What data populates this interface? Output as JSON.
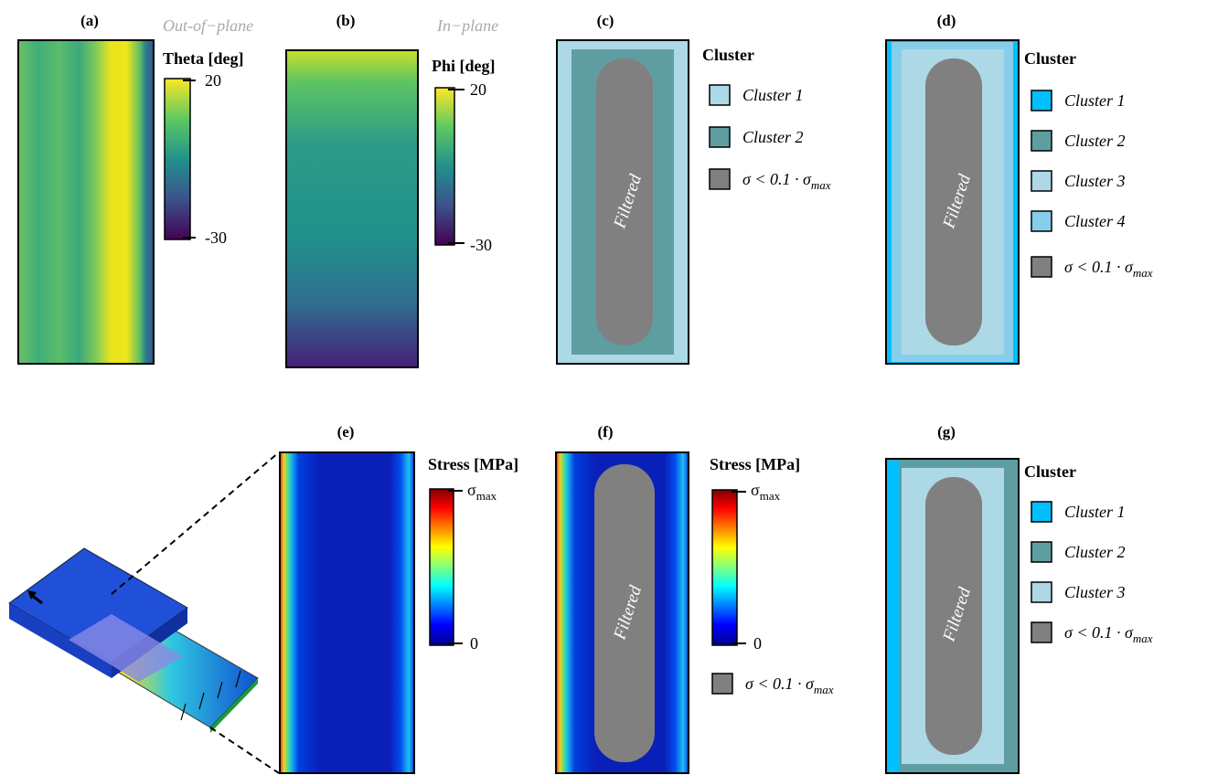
{
  "panels": [
    {
      "label": "(a)",
      "note": "Out-of−plane",
      "colorbar": {
        "title": "Theta [deg]",
        "ticks": [
          20,
          -30
        ]
      }
    },
    {
      "label": "(b)",
      "note": "In−plane",
      "colorbar": {
        "title": "Phi [deg]",
        "ticks": [
          20,
          -30
        ]
      }
    },
    {
      "label": "(c)",
      "overlay": "Filtered",
      "legend": {
        "title": "Cluster",
        "items": [
          {
            "text": "Cluster 1",
            "color": "#add8e6"
          },
          {
            "text": "Cluster 2",
            "color": "#5f9ea0"
          }
        ],
        "filter": {
          "text": "σ < 0.1 · σ",
          "sub": "max",
          "color": "#808080"
        }
      }
    },
    {
      "label": "(d)",
      "overlay": "Filtered",
      "legend": {
        "title": "Cluster",
        "items": [
          {
            "text": "Cluster 1",
            "color": "#00bfff"
          },
          {
            "text": "Cluster 2",
            "color": "#5f9ea0"
          },
          {
            "text": "Cluster 3",
            "color": "#add8e6"
          },
          {
            "text": "Cluster 4",
            "color": "#87ceeb"
          }
        ],
        "filter": {
          "text": "σ < 0.1 · σ",
          "sub": "max",
          "color": "#808080"
        }
      }
    },
    {
      "label": "(e)",
      "colorbar": {
        "title": "Stress [MPa]",
        "max": {
          "text": "σ",
          "sub": "max"
        },
        "min": 0
      }
    },
    {
      "label": "(f)",
      "overlay": "Filtered",
      "colorbar": {
        "title": "Stress [MPa]",
        "max": {
          "text": "σ",
          "sub": "max"
        },
        "min": 0
      },
      "legend": {
        "filter": {
          "text": "σ < 0.1 · σ",
          "sub": "max",
          "color": "#808080"
        }
      }
    },
    {
      "label": "(g)",
      "overlay": "Filtered",
      "legend": {
        "title": "Cluster",
        "items": [
          {
            "text": "Cluster 1",
            "color": "#00bfff"
          },
          {
            "text": "Cluster 2",
            "color": "#5f9ea0"
          },
          {
            "text": "Cluster 3",
            "color": "#add8e6"
          }
        ],
        "filter": {
          "text": "σ < 0.1 · σ",
          "sub": "max",
          "color": "#808080"
        }
      }
    }
  ]
}
